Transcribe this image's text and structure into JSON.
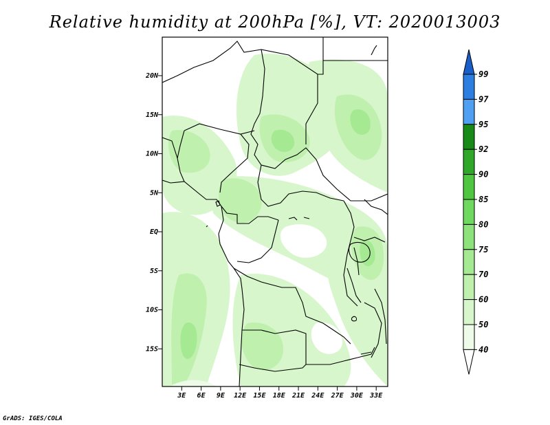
{
  "title": "Relative humidity at 200hPa [%], VT: 2020013003",
  "footer": "GrADS: IGES/COLA",
  "map": {
    "lat_labels": [
      "20N",
      "15N",
      "10N",
      "5N",
      "EQ",
      "5S",
      "10S",
      "15S"
    ],
    "lat_values": [
      20,
      15,
      10,
      5,
      0,
      -5,
      -10,
      -15
    ],
    "lon_labels": [
      "3E",
      "6E",
      "9E",
      "12E",
      "15E",
      "18E",
      "21E",
      "24E",
      "27E",
      "30E",
      "33E"
    ],
    "lon_values": [
      3,
      6,
      9,
      12,
      15,
      18,
      21,
      24,
      27,
      30,
      33
    ]
  },
  "colorbar": {
    "levels": [
      "40",
      "50",
      "60",
      "70",
      "75",
      "80",
      "85",
      "90",
      "92",
      "95",
      "97",
      "99"
    ],
    "colors": [
      "#eefbe8",
      "#d8f6cc",
      "#bff0ae",
      "#a5e992",
      "#8ee27b",
      "#6fd85e",
      "#4fc640",
      "#2fa82a",
      "#178a17",
      "#4f9ff2",
      "#2c7ee0",
      "#1a5fc7"
    ],
    "low_color": "#ffffff"
  }
}
